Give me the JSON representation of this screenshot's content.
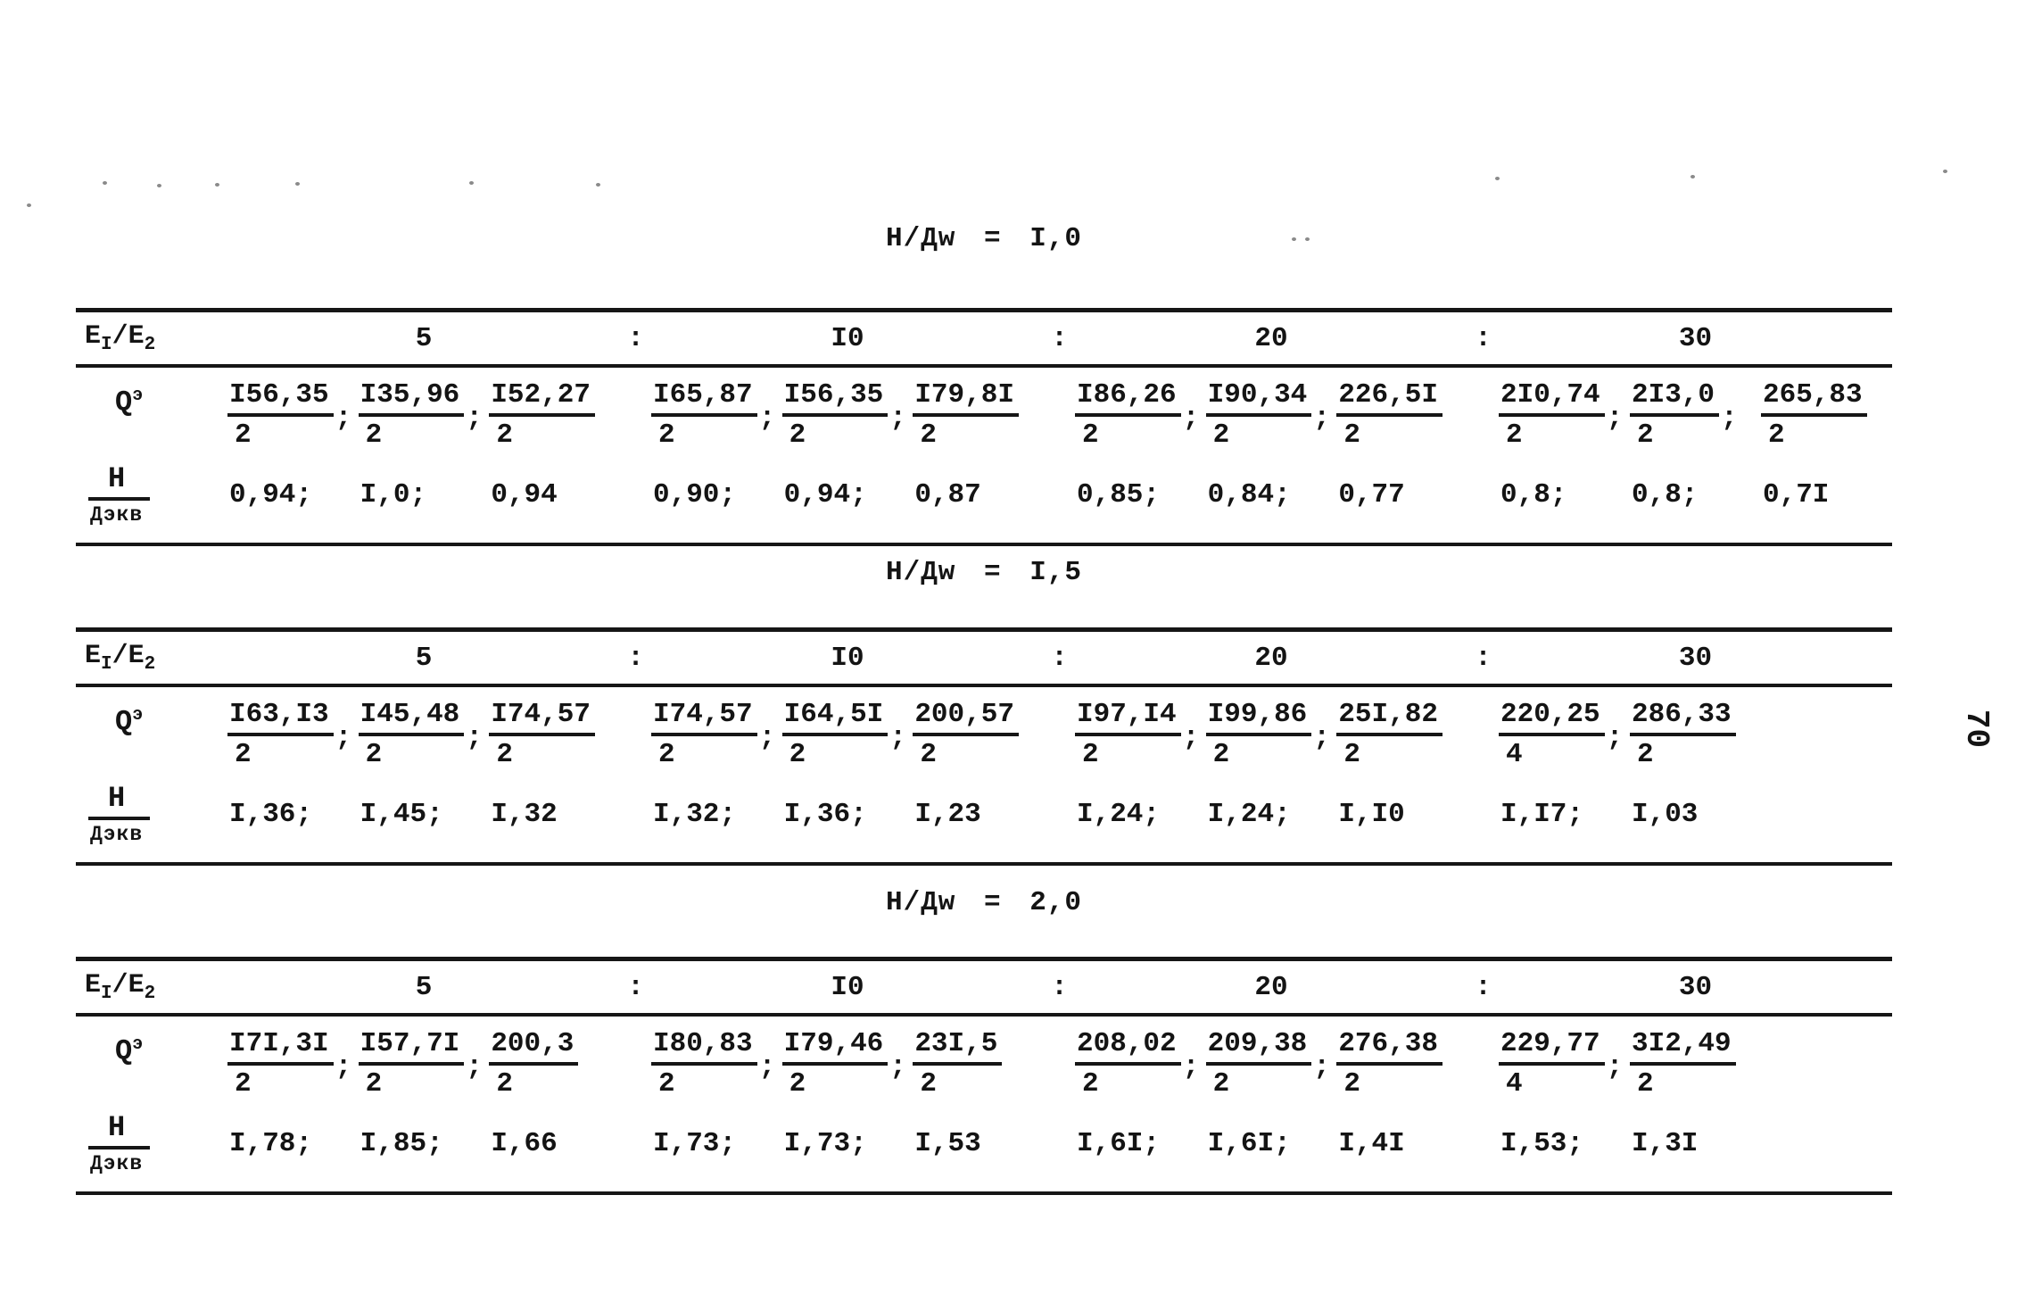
{
  "page": {
    "number": "70",
    "ink": "#141414",
    "paper": "#ffffff"
  },
  "labels": {
    "ratio": {
      "e": "Е",
      "sub1": "I",
      "slash": "/",
      "sub2": "2"
    },
    "q": {
      "base": "Q",
      "sup": "э"
    },
    "h": {
      "num": "Н",
      "den": "Дэкв"
    },
    "colon": ":"
  },
  "tables": [
    {
      "title": "Н/Дw = I,0",
      "groups": [
        {
          "header": "5",
          "q": [
            {
              "num": "I56,35",
              "den": "2",
              "sep": ";"
            },
            {
              "num": "I35,96",
              "den": "2",
              "sep": ";"
            },
            {
              "num": "I52,27",
              "den": "2",
              "sep": ""
            }
          ],
          "h": [
            "0,94;",
            "I,0;",
            "0,94"
          ]
        },
        {
          "header": "I0",
          "q": [
            {
              "num": "I65,87",
              "den": "2",
              "sep": ";"
            },
            {
              "num": "I56,35",
              "den": "2",
              "sep": ";"
            },
            {
              "num": "I79,8I",
              "den": "2",
              "sep": ""
            }
          ],
          "h": [
            "0,90;",
            "0,94;",
            "0,87"
          ]
        },
        {
          "header": "20",
          "q": [
            {
              "num": "I86,26",
              "den": "2",
              "sep": ";"
            },
            {
              "num": "I90,34",
              "den": "2",
              "sep": ";"
            },
            {
              "num": "226,5I",
              "den": "2",
              "sep": ""
            }
          ],
          "h": [
            "0,85;",
            "0,84;",
            "0,77"
          ]
        },
        {
          "header": "30",
          "q": [
            {
              "num": "2I0,74",
              "den": "2",
              "sep": ";"
            },
            {
              "num": "2I3,0",
              "den": "2",
              "sep": ";"
            },
            {
              "num": "265,83",
              "den": "2",
              "sep": ""
            }
          ],
          "h": [
            "0,8;",
            "0,8;",
            "0,7I"
          ]
        }
      ]
    },
    {
      "title": "Н/Дw = I,5",
      "groups": [
        {
          "header": "5",
          "q": [
            {
              "num": "I63,I3",
              "den": "2",
              "sep": ";"
            },
            {
              "num": "I45,48",
              "den": "2",
              "sep": ";"
            },
            {
              "num": "I74,57",
              "den": "2",
              "sep": ""
            }
          ],
          "h": [
            "I,36;",
            "I,45;",
            "I,32"
          ]
        },
        {
          "header": "I0",
          "q": [
            {
              "num": "I74,57",
              "den": "2",
              "sep": ";"
            },
            {
              "num": "I64,5I",
              "den": "2",
              "sep": ";"
            },
            {
              "num": "200,57",
              "den": "2",
              "sep": ""
            }
          ],
          "h": [
            "I,32;",
            "I,36;",
            "I,23"
          ]
        },
        {
          "header": "20",
          "q": [
            {
              "num": "I97,I4",
              "den": "2",
              "sep": ";"
            },
            {
              "num": "I99,86",
              "den": "2",
              "sep": ";"
            },
            {
              "num": "25I,82",
              "den": "2",
              "sep": ""
            }
          ],
          "h": [
            "I,24;",
            "I,24;",
            "I,I0"
          ]
        },
        {
          "header": "30",
          "q": [
            {
              "num": "220,25",
              "den": "4",
              "sep": ";"
            },
            {
              "num": "286,33",
              "den": "2",
              "sep": ""
            }
          ],
          "h": [
            "I,I7;",
            "I,03"
          ]
        }
      ]
    },
    {
      "title": "Н/Дw = 2,0",
      "groups": [
        {
          "header": "5",
          "q": [
            {
              "num": "I7I,3I",
              "den": "2",
              "sep": ";"
            },
            {
              "num": "I57,7I",
              "den": "2",
              "sep": ";"
            },
            {
              "num": "200,3",
              "den": "2",
              "sep": ""
            }
          ],
          "h": [
            "I,78;",
            "I,85;",
            "I,66"
          ]
        },
        {
          "header": "I0",
          "q": [
            {
              "num": "I80,83",
              "den": "2",
              "sep": ";"
            },
            {
              "num": "I79,46",
              "den": "2",
              "sep": ";"
            },
            {
              "num": "23I,5",
              "den": "2",
              "sep": ""
            }
          ],
          "h": [
            "I,73;",
            "I,73;",
            "I,53"
          ]
        },
        {
          "header": "20",
          "q": [
            {
              "num": "208,02",
              "den": "2",
              "sep": ";"
            },
            {
              "num": "209,38",
              "den": "2",
              "sep": ";"
            },
            {
              "num": "276,38",
              "den": "2",
              "sep": ""
            }
          ],
          "h": [
            "I,6I;",
            "I,6I;",
            "I,4I"
          ]
        },
        {
          "header": "30",
          "q": [
            {
              "num": "229,77",
              "den": "4",
              "sep": ";"
            },
            {
              "num": "3I2,49",
              "den": "2",
              "sep": ""
            }
          ],
          "h": [
            "I,53;",
            "I,3I"
          ]
        }
      ]
    }
  ]
}
